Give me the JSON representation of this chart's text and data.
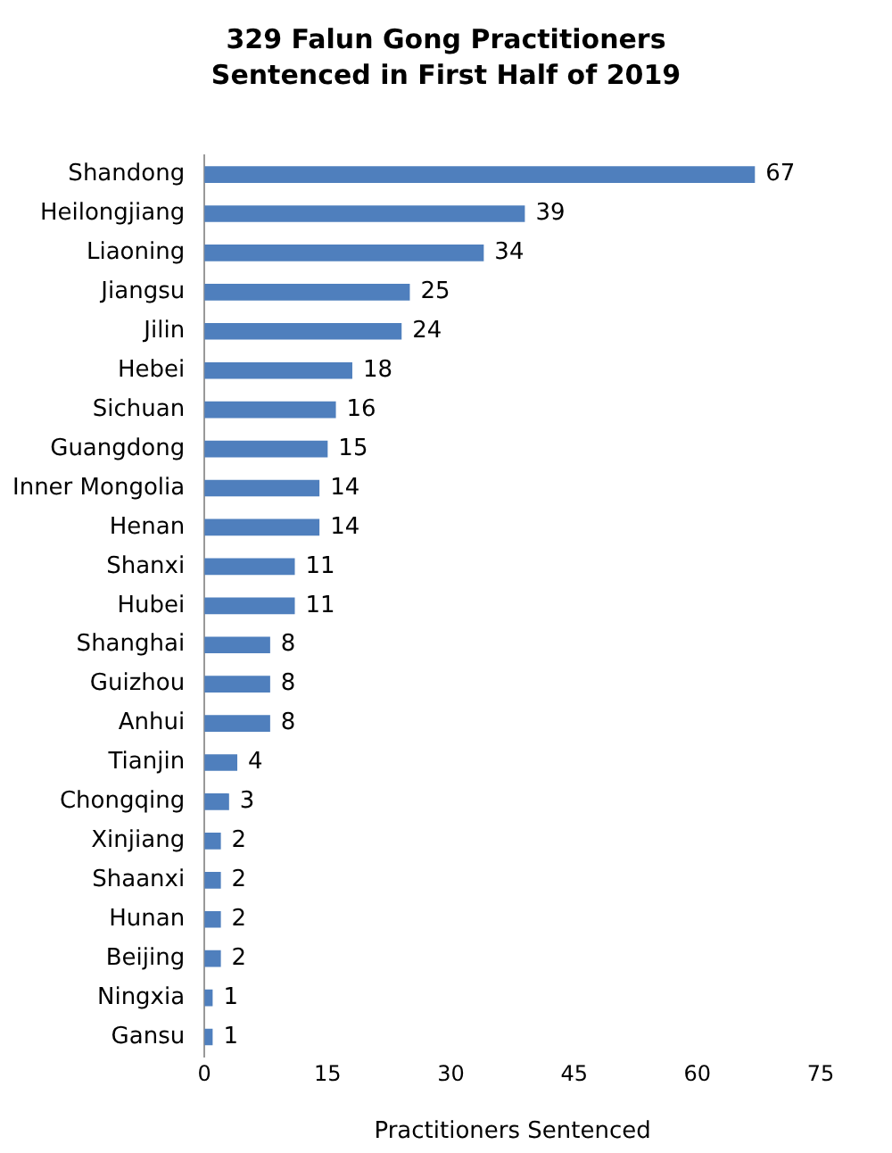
{
  "chart_data": {
    "type": "bar",
    "title": "329  Falun Gong Practitioners Sentenced in First Half of 2019",
    "xlabel": "Practitioners Sentenced",
    "orientation": "horizontal",
    "categories": [
      "Shandong",
      "Heilongjiang",
      "Liaoning",
      "Jiangsu",
      "Jilin",
      "Hebei",
      "Sichuan",
      "Guangdong",
      "Inner Mongolia",
      "Henan",
      "Shanxi",
      "Hubei",
      "Shanghai",
      "Guizhou",
      "Anhui",
      "Tianjin",
      "Chongqing",
      "Xinjiang",
      "Shaanxi",
      "Hunan",
      "Beijing",
      "Ningxia",
      "Gansu"
    ],
    "values": [
      67,
      39,
      34,
      25,
      24,
      18,
      16,
      15,
      14,
      14,
      11,
      11,
      8,
      8,
      8,
      4,
      3,
      2,
      2,
      2,
      2,
      1,
      1
    ],
    "color": "#4f7fbd",
    "xlim": [
      0,
      75
    ],
    "xticks": [
      0,
      15,
      30,
      45,
      60,
      75
    ],
    "data_labels": true
  }
}
